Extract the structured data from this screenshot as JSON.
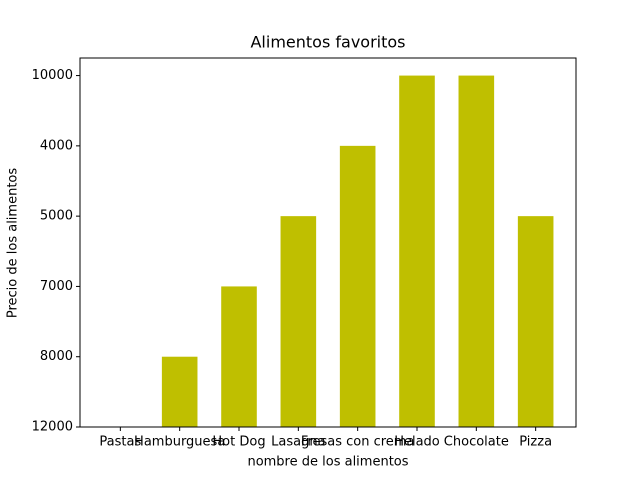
{
  "chart_data": {
    "type": "bar",
    "title": "Alimentos favoritos",
    "x_label": "nombre de los alimentos",
    "y_label": "Precio de los alimentos",
    "categories": [
      "Pastas",
      "Hamburguesa",
      "Hot Dog",
      "Lasagna",
      "Fresas con crema",
      "Helado",
      "Chocolate",
      "Pizza"
    ],
    "values": [
      0,
      1,
      2,
      3,
      4,
      5,
      5,
      3
    ],
    "color": "#bfbf00",
    "ylim": [
      0,
      5.25
    ],
    "yticks": [
      {
        "value": 0,
        "label": "12000"
      },
      {
        "value": 1,
        "label": "8000"
      },
      {
        "value": 2,
        "label": "7000"
      },
      {
        "value": 3,
        "label": "5000"
      },
      {
        "value": 4,
        "label": "4000"
      },
      {
        "value": 5,
        "label": "10000"
      }
    ],
    "grid": false
  }
}
